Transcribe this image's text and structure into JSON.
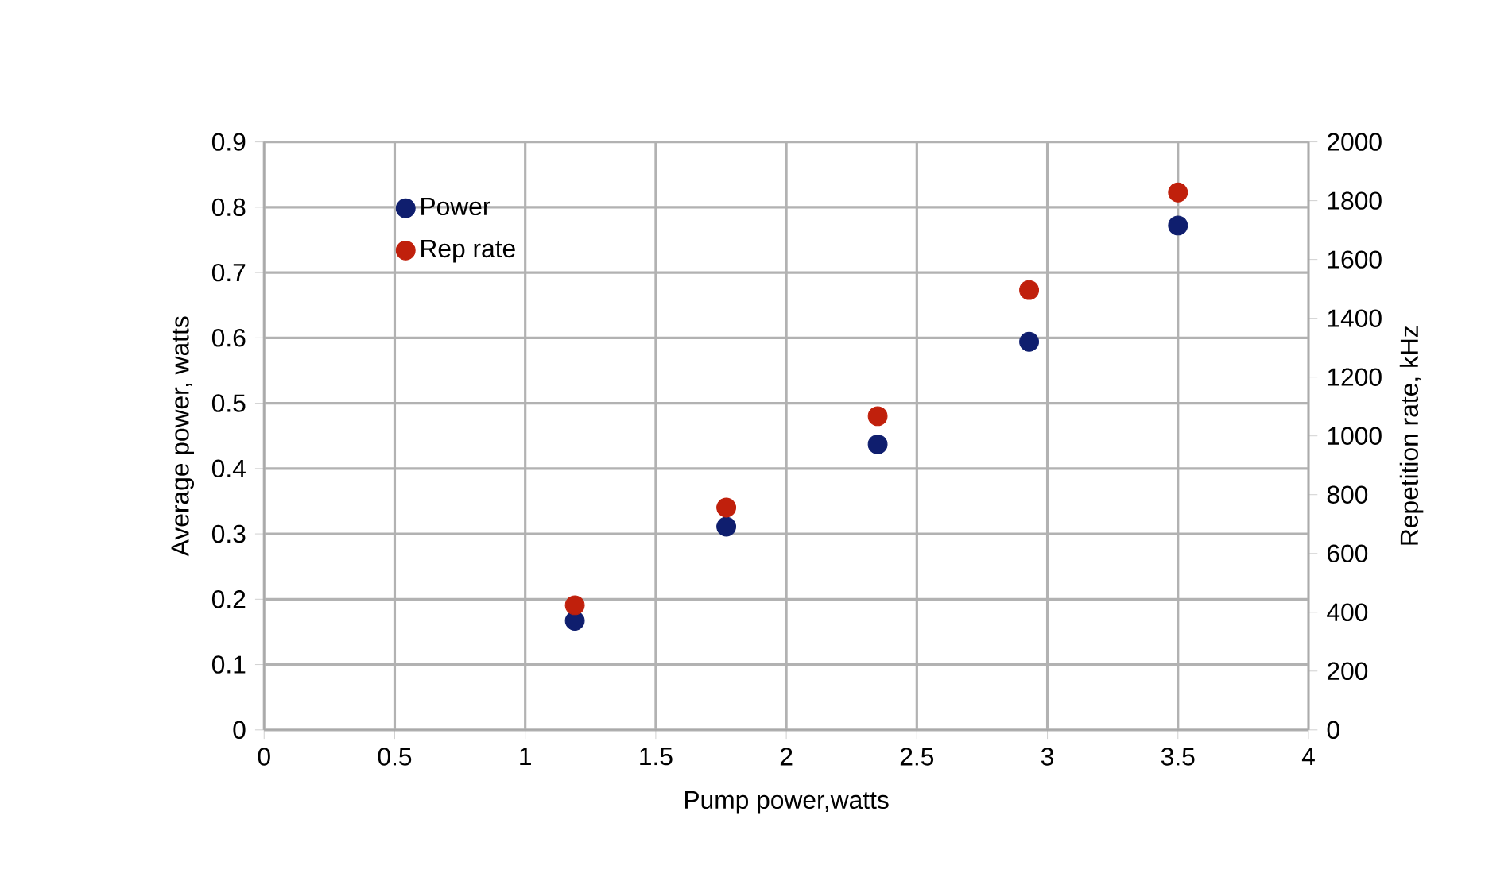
{
  "chart_data": {
    "type": "scatter",
    "xlabel": "Pump power,watts",
    "ylabel": "Average power, watts",
    "y2label": "Repetition rate, kHz",
    "series": [
      {
        "name": "Power",
        "color": "#0f1e6e",
        "x": [
          1.19,
          1.77,
          2.35,
          2.93,
          3.5
        ],
        "values": [
          0.167,
          0.311,
          0.437,
          0.594,
          0.772
        ]
      },
      {
        "name": "Rep rate",
        "color": "#c0200c",
        "axis": "y2",
        "x": [
          1.19,
          1.77,
          2.35,
          2.93,
          3.5
        ],
        "values": [
          424,
          756,
          1067,
          1496,
          1828
        ]
      }
    ],
    "xlim": [
      0,
      4
    ],
    "xticks": [
      0,
      0.5,
      1,
      1.5,
      2,
      2.5,
      3,
      3.5,
      4
    ],
    "ylim": [
      0,
      0.9
    ],
    "yticks": [
      0,
      0.1,
      0.2,
      0.3,
      0.4,
      0.5,
      0.6,
      0.7,
      0.8,
      0.9
    ],
    "y2lim": [
      0,
      2000
    ],
    "y2ticks": [
      0,
      200,
      400,
      600,
      800,
      1000,
      1200,
      1400,
      1600,
      1800,
      2000
    ],
    "grid": true,
    "legend": "top left",
    "marker": "circle"
  }
}
